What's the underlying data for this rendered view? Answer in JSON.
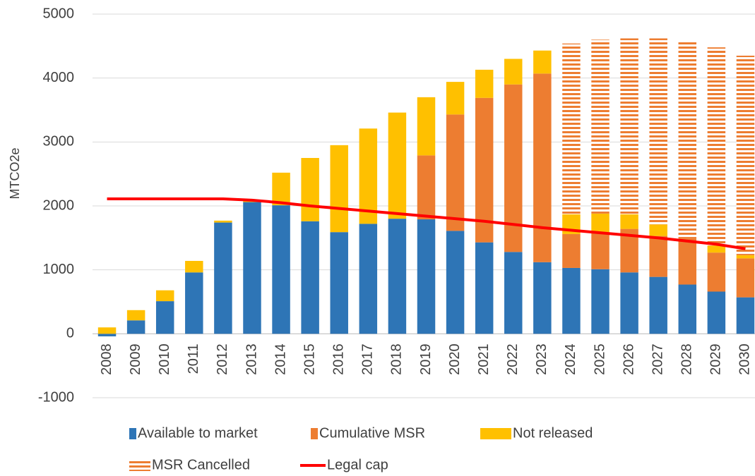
{
  "chart_data": {
    "type": "bar",
    "stacked": true,
    "y_label": "MTCO2e",
    "categories": [
      "2008",
      "2009",
      "2010",
      "2011",
      "2012",
      "2013",
      "2014",
      "2015",
      "2016",
      "2017",
      "2018",
      "2019",
      "2020",
      "2021",
      "2022",
      "2023",
      "2024",
      "2025",
      "2026",
      "2027",
      "2028",
      "2029",
      "2030"
    ],
    "series": [
      {
        "name": "Available to market",
        "color": "#2e75b6",
        "values": [
          -40,
          210,
          510,
          960,
          1740,
          2060,
          2010,
          1760,
          1590,
          1720,
          1800,
          1790,
          1610,
          1430,
          1280,
          1120,
          1030,
          1010,
          960,
          890,
          770,
          660,
          570
        ]
      },
      {
        "name": "Cumulative MSR",
        "color": "#ed7d31",
        "values": [
          0,
          0,
          0,
          0,
          0,
          0,
          0,
          0,
          0,
          0,
          0,
          1000,
          1820,
          2260,
          2620,
          2950,
          530,
          570,
          680,
          640,
          730,
          610,
          610
        ]
      },
      {
        "name": "Not released",
        "color": "#ffc000",
        "values": [
          100,
          160,
          170,
          180,
          30,
          20,
          510,
          990,
          1360,
          1490,
          1660,
          910,
          510,
          440,
          400,
          360,
          310,
          300,
          230,
          180,
          0,
          110,
          50
        ]
      },
      {
        "name": "MSR Cancelled",
        "color": "#ed7d31",
        "hatch": true,
        "values": [
          0,
          0,
          0,
          0,
          0,
          0,
          0,
          0,
          0,
          0,
          0,
          0,
          0,
          0,
          0,
          0,
          2670,
          2720,
          2750,
          2910,
          3090,
          3100,
          3120
        ]
      },
      {
        "name": "Legal cap",
        "color": "#ff0000",
        "type": "line",
        "values": [
          2110,
          2110,
          2110,
          2110,
          2110,
          2090,
          2050,
          2000,
          1960,
          1920,
          1880,
          1840,
          1800,
          1760,
          1710,
          1660,
          1620,
          1580,
          1540,
          1500,
          1450,
          1400,
          1330
        ]
      }
    ],
    "ylim": [
      -1000,
      5000
    ],
    "yticks": [
      -1000,
      0,
      1000,
      2000,
      3000,
      4000,
      5000
    ],
    "grid": true,
    "legend": "bottom"
  }
}
